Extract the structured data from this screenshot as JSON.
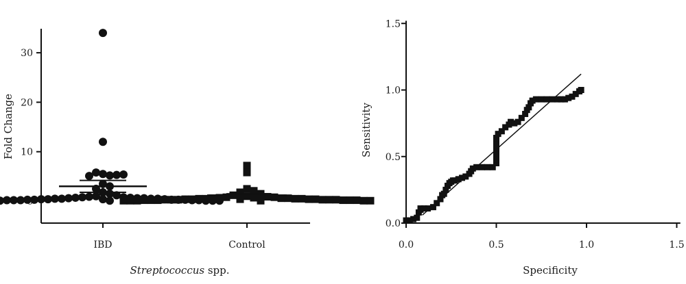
{
  "chart_data": [
    {
      "type": "scatter",
      "subtype": "dot-plot",
      "categories": [
        "IBD",
        "Control"
      ],
      "ylabel": "Fold Change",
      "xlabel_italic": "Streptococcus",
      "xlabel_rest": " spp.",
      "ylim": [
        -4,
        35
      ],
      "yticks": [
        0,
        10,
        20,
        30
      ],
      "grid": false,
      "series": [
        {
          "category": "IBD",
          "marker": "circle",
          "mean": 3.0,
          "sem_range": [
            1.8,
            4.2
          ],
          "values": [
            34.0,
            12.0,
            5.5,
            5.2,
            5.8,
            5.3,
            5.1,
            5.4,
            3.5,
            3.0,
            2.5,
            1.8,
            1.5,
            1.2,
            1.0,
            0.9,
            0.8,
            0.8,
            0.7,
            0.7,
            0.6,
            0.6,
            0.6,
            0.5,
            0.5,
            0.5,
            0.5,
            0.4,
            0.4,
            0.4,
            0.4,
            0.3,
            0.3,
            0.3,
            0.3,
            0.3,
            0.2,
            0.2,
            0.2,
            0.2,
            0.2,
            0.1,
            0.1,
            0.1,
            0.1,
            0.1,
            0.1
          ]
        },
        {
          "category": "Control",
          "marker": "square",
          "mean": 1.2,
          "sem_range": [
            0.9,
            1.5
          ],
          "values": [
            7.2,
            5.8,
            2.5,
            2.1,
            1.8,
            1.5,
            1.2,
            1.0,
            0.9,
            0.8,
            0.8,
            0.7,
            0.7,
            0.6,
            0.6,
            0.6,
            0.5,
            0.5,
            0.5,
            0.5,
            0.4,
            0.4,
            0.4,
            0.4,
            0.4,
            0.3,
            0.3,
            0.3,
            0.3,
            0.3,
            0.3,
            0.2,
            0.2,
            0.2,
            0.2,
            0.2,
            0.2,
            0.1,
            0.1,
            0.1,
            0.1,
            0.1,
            0.1
          ]
        }
      ]
    },
    {
      "type": "line",
      "subtype": "roc",
      "xlabel": "Specificity",
      "ylabel": "Sensitivity",
      "xlim": [
        0.0,
        1.5
      ],
      "ylim": [
        0.0,
        1.5
      ],
      "xticks": [
        "0.0",
        "0.5",
        "1.0",
        "1.5"
      ],
      "yticks": [
        "0.0",
        "0.5",
        "1.0",
        "1.5"
      ],
      "grid": false,
      "series": [
        {
          "marker": "square",
          "x": [
            0.0,
            0.02,
            0.04,
            0.06,
            0.07,
            0.08,
            0.08,
            0.1,
            0.12,
            0.15,
            0.17,
            0.19,
            0.2,
            0.21,
            0.22,
            0.23,
            0.24,
            0.25,
            0.26,
            0.27,
            0.29,
            0.31,
            0.33,
            0.35,
            0.36,
            0.37,
            0.39,
            0.42,
            0.45,
            0.48,
            0.5,
            0.5,
            0.5,
            0.5,
            0.5,
            0.5,
            0.51,
            0.53,
            0.55,
            0.57,
            0.58,
            0.6,
            0.62,
            0.64,
            0.66,
            0.67,
            0.68,
            0.69,
            0.7,
            0.72,
            0.75,
            0.78,
            0.81,
            0.84,
            0.86,
            0.88,
            0.9,
            0.92,
            0.94,
            0.96,
            0.97
          ],
          "y": [
            0.02,
            0.02,
            0.03,
            0.04,
            0.08,
            0.1,
            0.11,
            0.11,
            0.11,
            0.12,
            0.15,
            0.18,
            0.21,
            0.22,
            0.25,
            0.28,
            0.3,
            0.31,
            0.32,
            0.32,
            0.33,
            0.34,
            0.35,
            0.37,
            0.39,
            0.41,
            0.42,
            0.42,
            0.42,
            0.42,
            0.45,
            0.48,
            0.52,
            0.56,
            0.6,
            0.64,
            0.67,
            0.69,
            0.72,
            0.74,
            0.76,
            0.75,
            0.76,
            0.79,
            0.82,
            0.85,
            0.87,
            0.9,
            0.92,
            0.93,
            0.93,
            0.93,
            0.93,
            0.93,
            0.93,
            0.93,
            0.94,
            0.95,
            0.97,
            0.99,
            1.0
          ]
        },
        {
          "name": "",
          "style": "thin-line",
          "x": [
            0.09,
            0.97
          ],
          "y": [
            0.06,
            1.12
          ]
        }
      ]
    }
  ]
}
